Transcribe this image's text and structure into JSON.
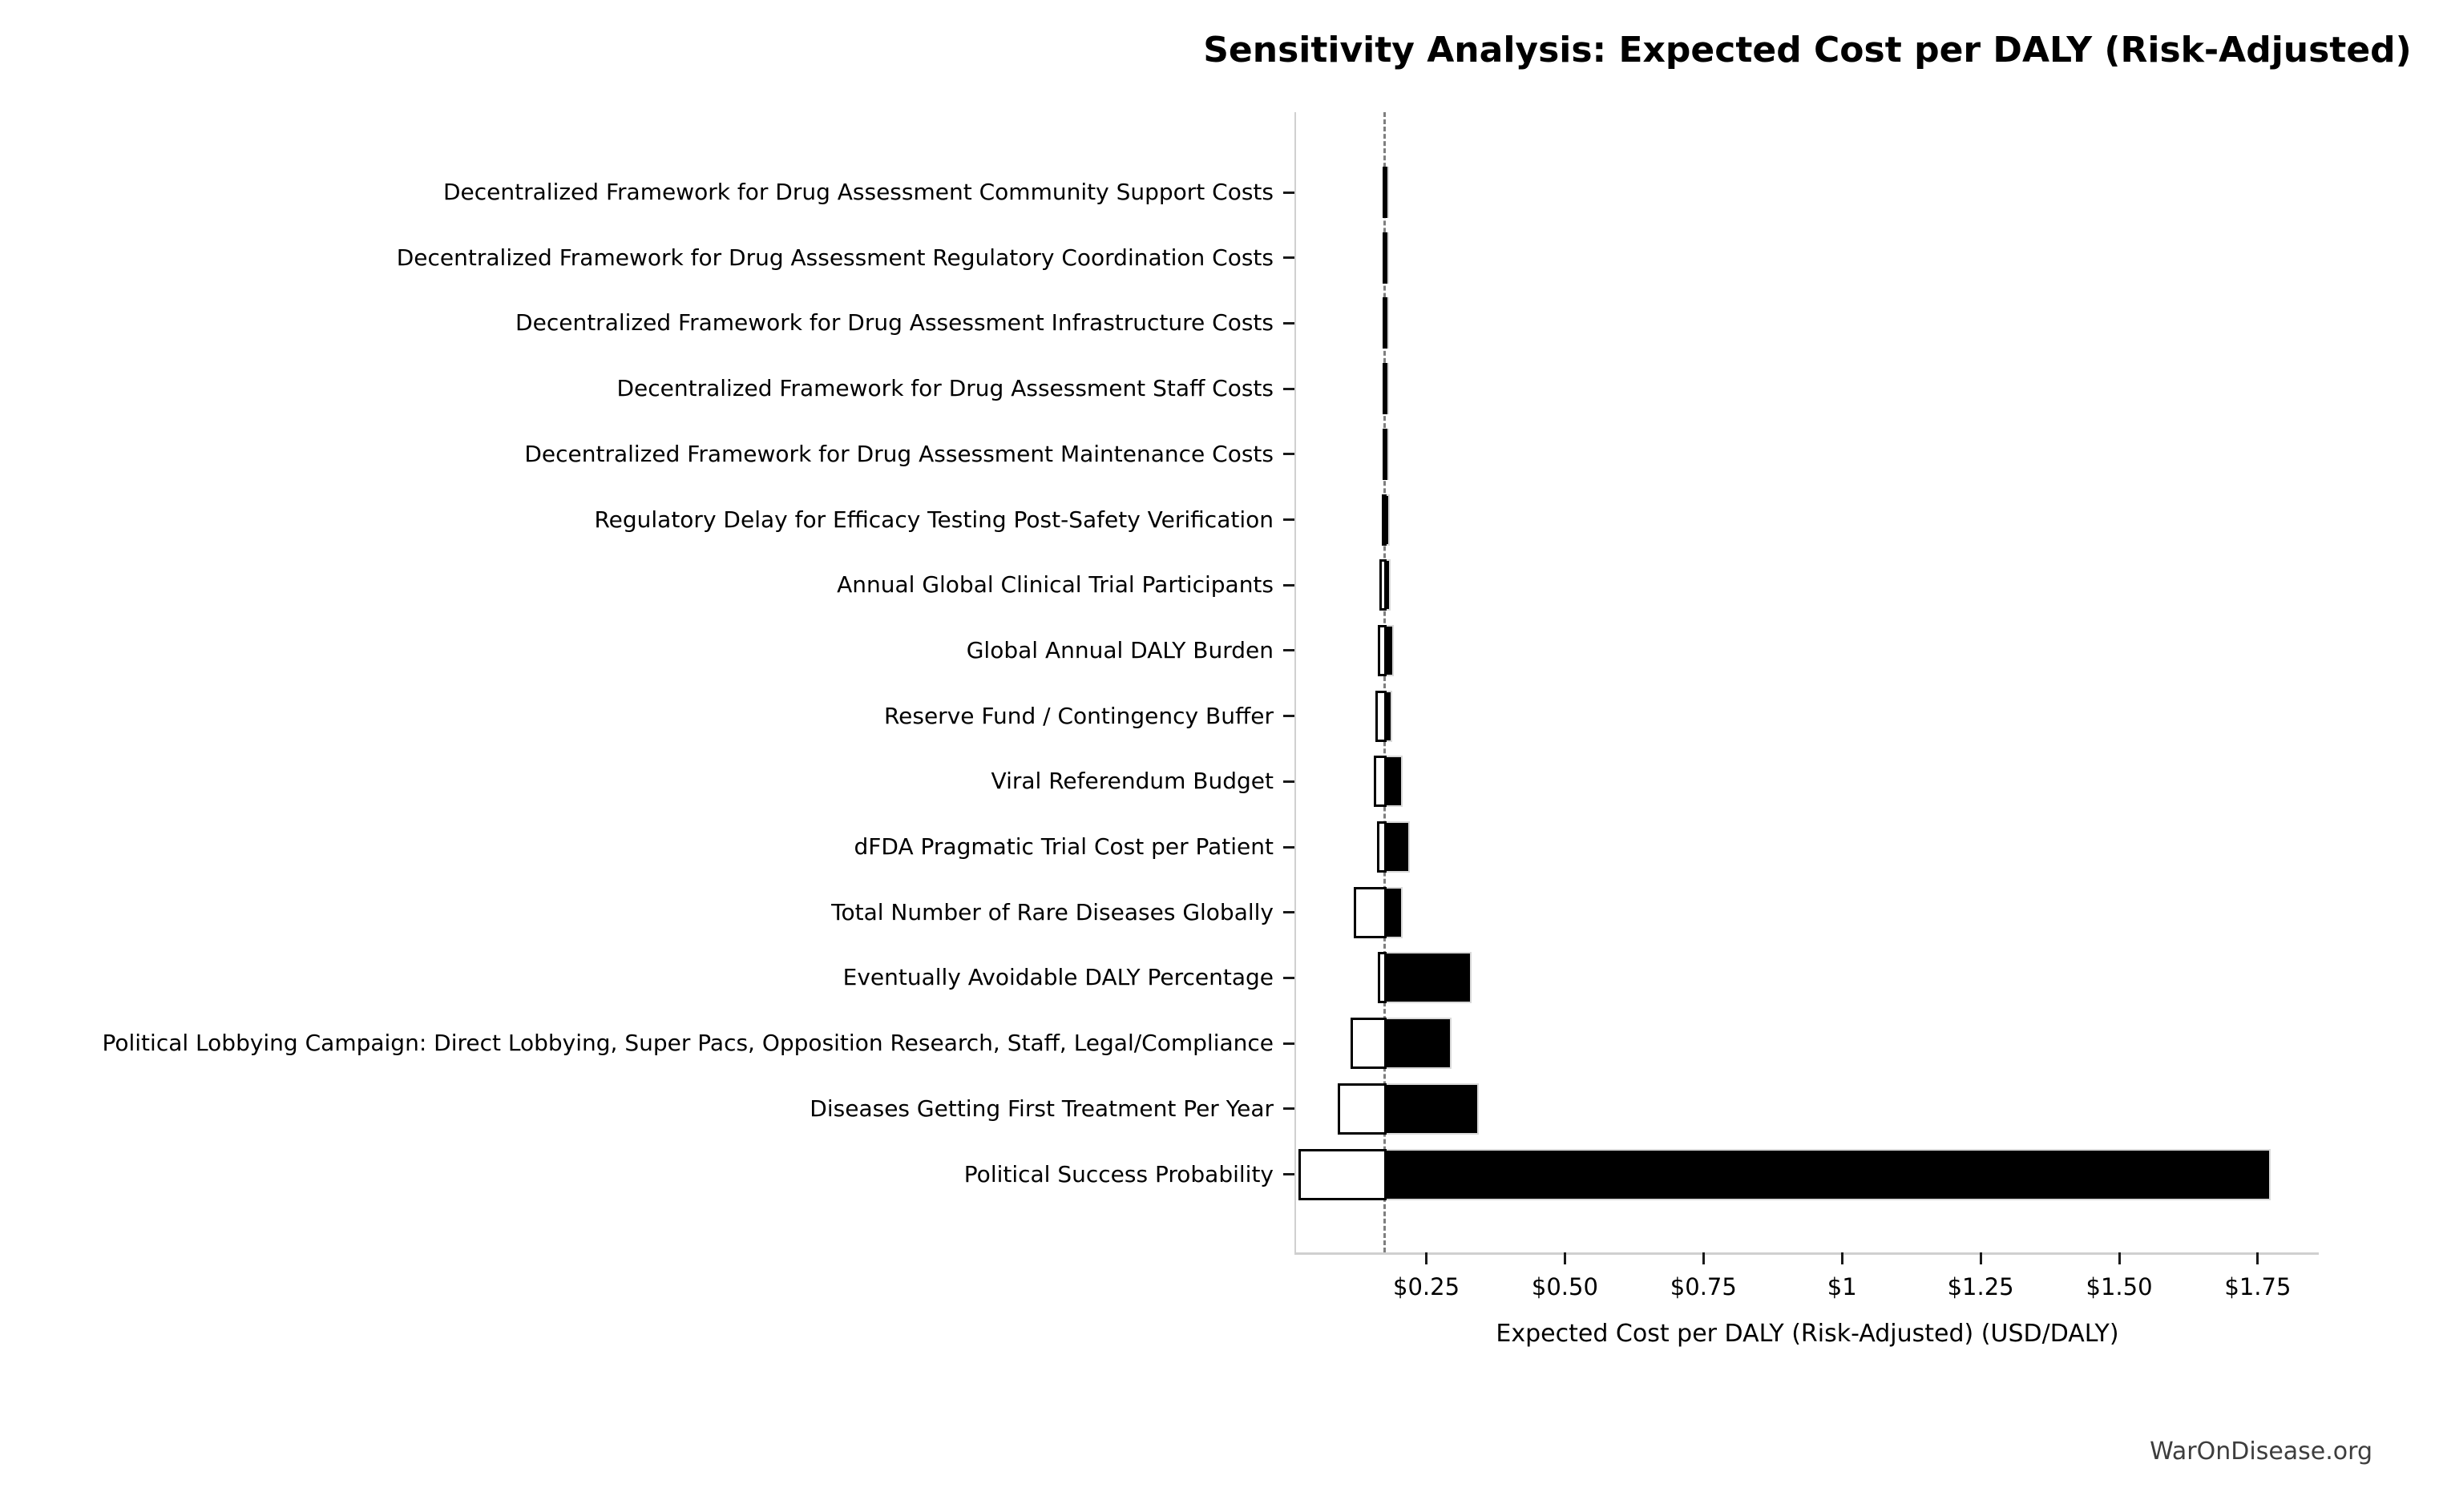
{
  "watermark": "WarOnDisease.org",
  "chart_data": {
    "type": "bar",
    "orientation": "horizontal",
    "subtype": "tornado-sensitivity",
    "title": "Sensitivity Analysis: Expected Cost per DALY (Risk-Adjusted)",
    "xlabel": "Expected Cost per DALY (Risk-Adjusted) (USD/DALY)",
    "ylabel": "",
    "legend": "none",
    "grid": false,
    "baseline_value": 0.175,
    "baseline_style": "dashed-gray-vertical",
    "xlim": [
      0.015,
      1.86
    ],
    "x_ticks": [
      {
        "value": 0.25,
        "label": "$0.25"
      },
      {
        "value": 0.5,
        "label": "$0.50"
      },
      {
        "value": 0.75,
        "label": "$0.75"
      },
      {
        "value": 1.0,
        "label": "$1"
      },
      {
        "value": 1.25,
        "label": "$1.25"
      },
      {
        "value": 1.5,
        "label": "$1.50"
      },
      {
        "value": 1.75,
        "label": "$1.75"
      }
    ],
    "series": [
      {
        "name": "low-case",
        "fill": "#ffffff",
        "edge": "#000000"
      },
      {
        "name": "high-case",
        "fill": "#000000",
        "edge": "#d9d9d9"
      }
    ],
    "rows": [
      {
        "label": "Decentralized Framework for Drug Assessment Community Support Costs",
        "low": 0.171,
        "high": 0.183
      },
      {
        "label": "Decentralized Framework for Drug Assessment Regulatory Coordination Costs",
        "low": 0.171,
        "high": 0.183
      },
      {
        "label": "Decentralized Framework for Drug Assessment Infrastructure Costs",
        "low": 0.171,
        "high": 0.183
      },
      {
        "label": "Decentralized Framework for Drug Assessment Staff Costs",
        "low": 0.171,
        "high": 0.183
      },
      {
        "label": "Decentralized Framework for Drug Assessment Maintenance Costs",
        "low": 0.171,
        "high": 0.183
      },
      {
        "label": "Regulatory Delay for Efficacy Testing Post-Safety Verification",
        "low": 0.169,
        "high": 0.184
      },
      {
        "label": "Annual Global Clinical Trial Participants",
        "low": 0.166,
        "high": 0.186
      },
      {
        "label": "Global Annual DALY Burden",
        "low": 0.162,
        "high": 0.191
      },
      {
        "label": "Reserve Fund / Contingency Buffer",
        "low": 0.158,
        "high": 0.189
      },
      {
        "label": "Viral Referendum Budget",
        "low": 0.155,
        "high": 0.208
      },
      {
        "label": "dFDA Pragmatic Trial Cost per Patient",
        "low": 0.161,
        "high": 0.221
      },
      {
        "label": "Total Number of Rare Diseases Globally",
        "low": 0.119,
        "high": 0.208
      },
      {
        "label": "Eventually Avoidable DALY Percentage",
        "low": 0.163,
        "high": 0.332
      },
      {
        "label": "Political Lobbying Campaign: Direct Lobbying, Super Pacs, Opposition Research, Staff, Legal/Compliance",
        "low": 0.113,
        "high": 0.295
      },
      {
        "label": "Diseases Getting First Treatment Per Year",
        "low": 0.09,
        "high": 0.344
      },
      {
        "label": "Political Success Probability",
        "low": 0.019,
        "high": 1.773
      }
    ],
    "colors": {
      "bar_high_fill": "#000000",
      "bar_high_edge": "#d9d9d9",
      "bar_low_fill": "#ffffff",
      "bar_low_edge": "#000000",
      "baseline": "#7f7f7f",
      "spine": "#d0d0d0",
      "tick": "#1a1a1a",
      "text": "#000000",
      "watermark": "#3d3d3d"
    }
  }
}
